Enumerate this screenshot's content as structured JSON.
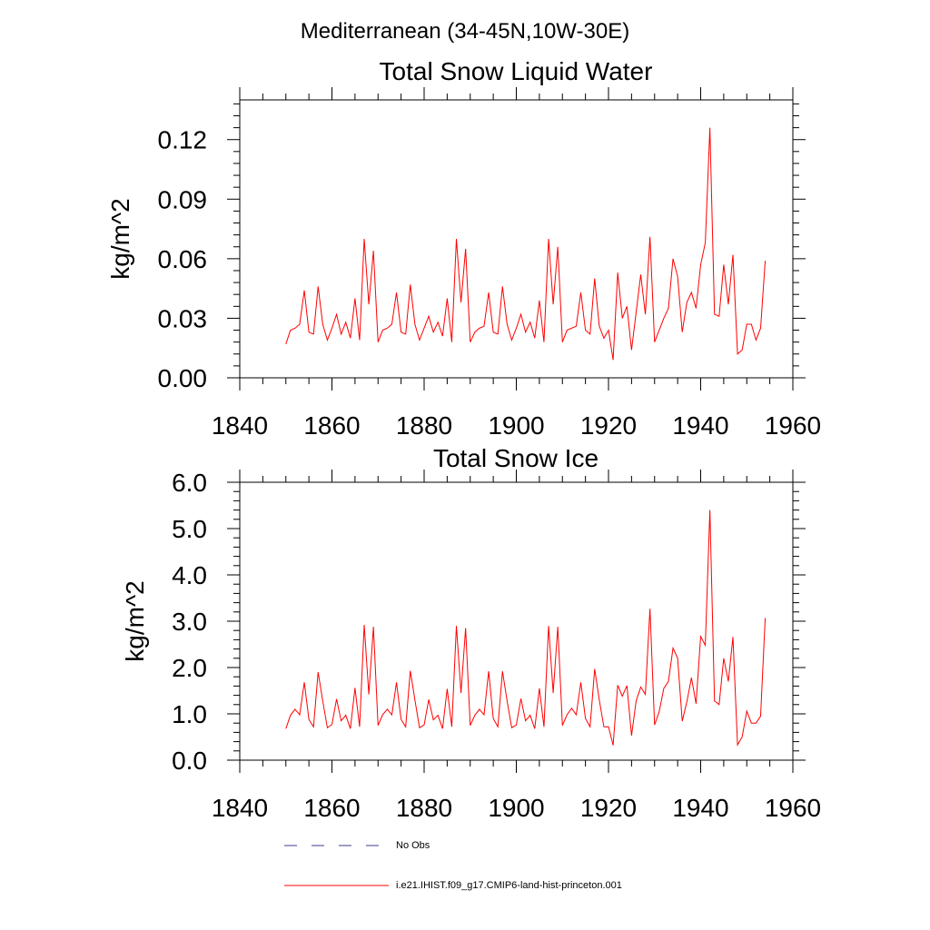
{
  "suptitle": "Mediterranean (34-45N,10W-30E)",
  "legend": [
    {
      "label": "No Obs",
      "color": "#3b3b8f",
      "dash": true
    },
    {
      "label": "i.e21.IHIST.f09_g17.CMIP6-land-hist-princeton.001",
      "color": "#ff0000",
      "dash": false
    }
  ],
  "chart_data": [
    {
      "type": "line",
      "title": "Total Snow Liquid Water",
      "xlabel": "",
      "ylabel": "kg/m^2",
      "xlim": [
        1840,
        1960
      ],
      "ylim": [
        0,
        0.14
      ],
      "xticks": [
        1840,
        1860,
        1880,
        1900,
        1920,
        1940,
        1960
      ],
      "xtick_labels": [
        "1840",
        "1860",
        "1880",
        "1900",
        "1920",
        "1940",
        "1960"
      ],
      "yticks": [
        0,
        0.03,
        0.06,
        0.09,
        0.12
      ],
      "ytick_labels": [
        "0.00",
        "0.03",
        "0.06",
        "0.09",
        "0.12"
      ],
      "series": [
        {
          "name": "i.e21.IHIST.f09_g17.CMIP6-land-hist-princeton.001",
          "color": "#ff0000",
          "x_start": 1850,
          "values": [
            0.017,
            0.024,
            0.025,
            0.027,
            0.044,
            0.023,
            0.022,
            0.046,
            0.027,
            0.019,
            0.025,
            0.032,
            0.022,
            0.028,
            0.02,
            0.04,
            0.019,
            0.07,
            0.037,
            0.064,
            0.018,
            0.024,
            0.025,
            0.027,
            0.043,
            0.023,
            0.022,
            0.047,
            0.027,
            0.019,
            0.025,
            0.031,
            0.023,
            0.028,
            0.021,
            0.04,
            0.018,
            0.07,
            0.038,
            0.065,
            0.018,
            0.023,
            0.025,
            0.026,
            0.043,
            0.023,
            0.022,
            0.046,
            0.027,
            0.019,
            0.025,
            0.032,
            0.023,
            0.028,
            0.02,
            0.039,
            0.018,
            0.07,
            0.037,
            0.066,
            0.018,
            0.024,
            0.025,
            0.026,
            0.043,
            0.024,
            0.022,
            0.05,
            0.026,
            0.02,
            0.024,
            0.009,
            0.053,
            0.03,
            0.036,
            0.014,
            0.033,
            0.052,
            0.032,
            0.071,
            0.018,
            0.024,
            0.03,
            0.035,
            0.06,
            0.051,
            0.023,
            0.038,
            0.043,
            0.035,
            0.057,
            0.068,
            0.126,
            0.032,
            0.031,
            0.057,
            0.037,
            0.062,
            0.012,
            0.014,
            0.027,
            0.027,
            0.019,
            0.025,
            0.059
          ]
        }
      ]
    },
    {
      "type": "line",
      "title": "Total Snow Ice",
      "xlabel": "",
      "ylabel": "kg/m^2",
      "xlim": [
        1840,
        1960
      ],
      "ylim": [
        0,
        6
      ],
      "xticks": [
        1840,
        1860,
        1880,
        1900,
        1920,
        1940,
        1960
      ],
      "xtick_labels": [
        "1840",
        "1860",
        "1880",
        "1900",
        "1920",
        "1940",
        "1960"
      ],
      "yticks": [
        0,
        1,
        2,
        3,
        4,
        5,
        6
      ],
      "ytick_labels": [
        "0.0",
        "1.0",
        "2.0",
        "3.0",
        "4.0",
        "5.0",
        "6.0"
      ],
      "series": [
        {
          "name": "i.e21.IHIST.f09_g17.CMIP6-land-hist-princeton.001",
          "color": "#ff0000",
          "x_start": 1850,
          "values": [
            0.68,
            0.97,
            1.1,
            0.98,
            1.68,
            0.88,
            0.72,
            1.9,
            1.28,
            0.7,
            0.77,
            1.32,
            0.85,
            0.97,
            0.68,
            1.56,
            0.72,
            2.92,
            1.42,
            2.88,
            0.75,
            0.98,
            1.1,
            0.98,
            1.68,
            0.88,
            0.72,
            1.93,
            1.3,
            0.7,
            0.76,
            1.31,
            0.87,
            0.97,
            0.68,
            1.54,
            0.72,
            2.9,
            1.45,
            2.85,
            0.75,
            0.97,
            1.1,
            0.98,
            1.92,
            0.9,
            0.72,
            1.92,
            1.28,
            0.7,
            0.76,
            1.33,
            0.85,
            0.97,
            0.68,
            1.55,
            0.72,
            2.9,
            1.45,
            2.88,
            0.75,
            0.98,
            1.12,
            0.98,
            1.68,
            0.9,
            0.72,
            1.97,
            1.3,
            0.72,
            0.72,
            0.32,
            1.62,
            1.38,
            1.61,
            0.53,
            1.28,
            1.58,
            1.42,
            3.27,
            0.76,
            1.05,
            1.55,
            1.7,
            2.42,
            2.2,
            0.84,
            1.26,
            1.78,
            1.22,
            2.67,
            2.48,
            5.4,
            1.28,
            1.2,
            2.2,
            1.7,
            2.66,
            0.33,
            0.5,
            1.06,
            0.8,
            0.8,
            0.95,
            3.07
          ]
        }
      ]
    }
  ]
}
